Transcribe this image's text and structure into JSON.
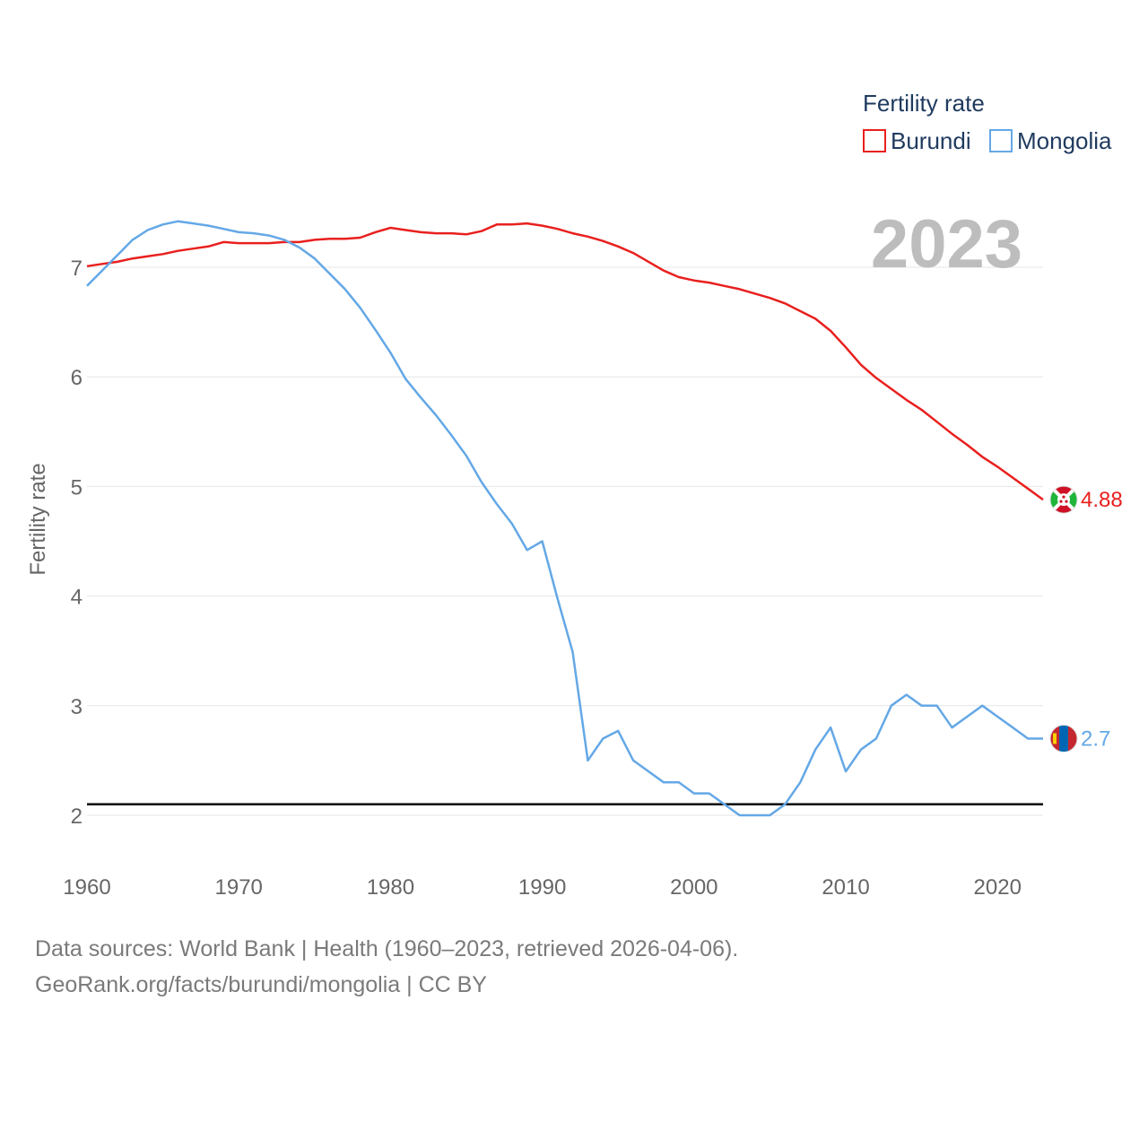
{
  "chart_data": {
    "type": "line",
    "ylabel": "Fertility rate",
    "xlabel": "",
    "xlim": [
      1960,
      2023
    ],
    "ylim": [
      1.7,
      7.6
    ],
    "x_ticks": [
      1960,
      1970,
      1980,
      1990,
      2000,
      2010,
      2020
    ],
    "y_ticks": [
      2,
      3,
      4,
      5,
      6,
      7
    ],
    "reference_line": 2.1,
    "year_label": "2023",
    "legend": {
      "title": "Fertility rate",
      "position": "top-right"
    },
    "x": [
      1960,
      1961,
      1962,
      1963,
      1964,
      1965,
      1966,
      1967,
      1968,
      1969,
      1970,
      1971,
      1972,
      1973,
      1974,
      1975,
      1976,
      1977,
      1978,
      1979,
      1980,
      1981,
      1982,
      1983,
      1984,
      1985,
      1986,
      1987,
      1988,
      1989,
      1990,
      1991,
      1992,
      1993,
      1994,
      1995,
      1996,
      1997,
      1998,
      1999,
      2000,
      2001,
      2002,
      2003,
      2004,
      2005,
      2006,
      2007,
      2008,
      2009,
      2010,
      2011,
      2012,
      2013,
      2014,
      2015,
      2016,
      2017,
      2018,
      2019,
      2020,
      2021,
      2022,
      2023
    ],
    "series": [
      {
        "name": "Burundi",
        "color": "#e8201e",
        "end_label": "4.88",
        "flag": "burundi",
        "values": [
          7.01,
          7.03,
          7.05,
          7.08,
          7.1,
          7.12,
          7.15,
          7.17,
          7.19,
          7.23,
          7.22,
          7.22,
          7.22,
          7.23,
          7.23,
          7.25,
          7.26,
          7.26,
          7.27,
          7.32,
          7.36,
          7.34,
          7.32,
          7.31,
          7.31,
          7.3,
          7.33,
          7.39,
          7.39,
          7.4,
          7.38,
          7.35,
          7.31,
          7.28,
          7.24,
          7.19,
          7.13,
          7.05,
          6.97,
          6.91,
          6.88,
          6.86,
          6.83,
          6.8,
          6.76,
          6.72,
          6.67,
          6.6,
          6.53,
          6.42,
          6.27,
          6.11,
          5.99,
          5.89,
          5.79,
          5.7,
          5.59,
          5.48,
          5.38,
          5.27,
          5.18,
          5.08,
          4.98,
          4.88
        ]
      },
      {
        "name": "Mongolia",
        "color": "#64a8e6",
        "end_label": "2.7",
        "flag": "mongolia",
        "values": [
          6.83,
          6.97,
          7.11,
          7.25,
          7.34,
          7.39,
          7.42,
          7.4,
          7.38,
          7.35,
          7.32,
          7.31,
          7.29,
          7.25,
          7.18,
          7.08,
          6.94,
          6.8,
          6.63,
          6.43,
          6.22,
          5.98,
          5.81,
          5.65,
          5.47,
          5.28,
          5.04,
          4.84,
          4.66,
          4.42,
          4.5,
          3.98,
          3.49,
          2.5,
          2.7,
          2.77,
          2.5,
          2.4,
          2.3,
          2.3,
          2.2,
          2.2,
          2.1,
          2.0,
          2.0,
          2.0,
          2.1,
          2.3,
          2.6,
          2.8,
          2.4,
          2.6,
          2.7,
          3.0,
          3.1,
          3.0,
          3.0,
          2.8,
          2.9,
          3.0,
          2.9,
          2.8,
          2.7,
          2.7
        ]
      }
    ]
  },
  "footer": {
    "line1": "Data sources: World Bank | Health (1960–2023, retrieved 2026-04-06).",
    "line2": "GeoRank.org/facts/burundi/mongolia | CC BY"
  }
}
